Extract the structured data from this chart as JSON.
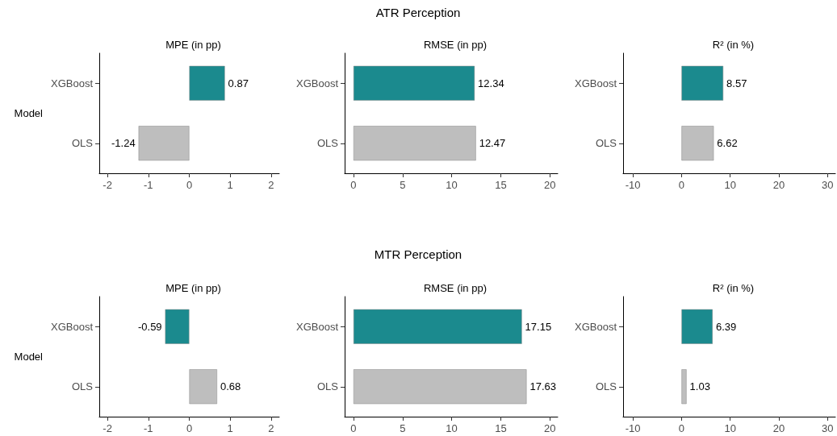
{
  "chart_data": [
    {
      "type": "bar",
      "orientation": "horizontal",
      "title": "MPE (in pp)",
      "ylabel": "Model",
      "categories": [
        "XGBoost",
        "OLS"
      ],
      "values": [
        0.87,
        -1.24
      ],
      "colors": [
        "#1b8a8e",
        "#bebebe"
      ],
      "xlim": [
        -2.2,
        2.2
      ],
      "xticks": [
        -2,
        -1,
        0,
        1,
        2
      ],
      "data_labels": true
    },
    {
      "type": "bar",
      "orientation": "horizontal",
      "title": "RMSE (in pp)",
      "annotations": [
        "ATR Perception"
      ],
      "categories": [
        "XGBoost",
        "OLS"
      ],
      "values": [
        12.34,
        12.47
      ],
      "colors": [
        "#1b8a8e",
        "#bebebe"
      ],
      "xlim": [
        -0.9,
        20.8
      ],
      "xticks": [
        0,
        5,
        10,
        15,
        20
      ],
      "data_labels": true
    },
    {
      "type": "bar",
      "orientation": "horizontal",
      "title": "R² (in %)",
      "categories": [
        "XGBoost",
        "OLS"
      ],
      "values": [
        8.57,
        6.62
      ],
      "colors": [
        "#1b8a8e",
        "#bebebe"
      ],
      "xlim": [
        -12,
        31.6
      ],
      "xticks": [
        -10,
        0,
        10,
        20,
        30
      ],
      "data_labels": true
    },
    {
      "type": "bar",
      "orientation": "horizontal",
      "title": "MPE (in pp)",
      "ylabel": "Model",
      "categories": [
        "XGBoost",
        "OLS"
      ],
      "values": [
        -0.59,
        0.68
      ],
      "colors": [
        "#1b8a8e",
        "#bebebe"
      ],
      "xlim": [
        -2.2,
        2.2
      ],
      "xticks": [
        -2,
        -1,
        0,
        1,
        2
      ],
      "data_labels": true
    },
    {
      "type": "bar",
      "orientation": "horizontal",
      "title": "RMSE (in pp)",
      "annotations": [
        "MTR Perception"
      ],
      "categories": [
        "XGBoost",
        "OLS"
      ],
      "values": [
        17.15,
        17.63
      ],
      "colors": [
        "#1b8a8e",
        "#bebebe"
      ],
      "xlim": [
        -0.9,
        20.8
      ],
      "xticks": [
        0,
        5,
        10,
        15,
        20
      ],
      "data_labels": true
    },
    {
      "type": "bar",
      "orientation": "horizontal",
      "title": "R² (in %)",
      "categories": [
        "XGBoost",
        "OLS"
      ],
      "values": [
        6.39,
        1.03
      ],
      "colors": [
        "#1b8a8e",
        "#bebebe"
      ],
      "xlim": [
        -12,
        31.6
      ],
      "xticks": [
        -10,
        0,
        10,
        20,
        30
      ],
      "data_labels": true
    }
  ]
}
